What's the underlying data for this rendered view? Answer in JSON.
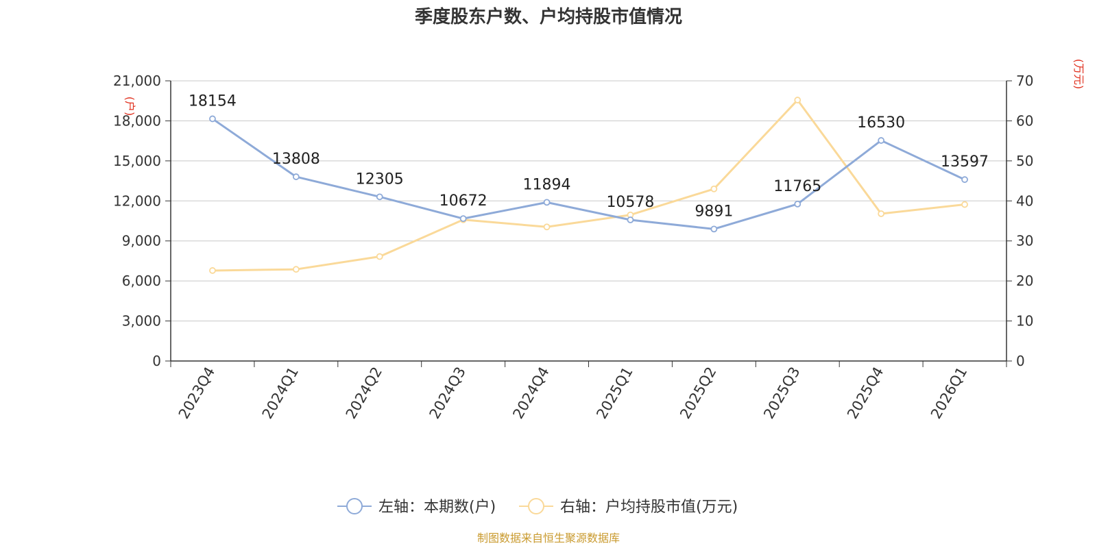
{
  "chart_data": {
    "type": "line",
    "title": "季度股东户数、户均持股市值情况",
    "categories": [
      "2023Q4",
      "2024Q1",
      "2024Q2",
      "2024Q3",
      "2024Q4",
      "2025Q1",
      "2025Q2",
      "2025Q3",
      "2025Q4",
      "2026Q1"
    ],
    "series": [
      {
        "name": "左轴：本期数(户)",
        "axis": "left",
        "color": "#8eaad8",
        "values": [
          18154,
          13808,
          12305,
          10672,
          11894,
          10578,
          9891,
          11765,
          16530,
          13597
        ],
        "labels": [
          "18154",
          "13808",
          "12305",
          "10672",
          "11894",
          "10578",
          "9891",
          "11765",
          "16530",
          "13597"
        ]
      },
      {
        "name": "右轴：户均持股市值(万元)",
        "axis": "right",
        "color": "#fad999",
        "values": [
          22.6,
          22.9,
          26.1,
          35.3,
          33.5,
          36.5,
          43.0,
          65.2,
          36.8,
          39.1
        ]
      }
    ],
    "left_axis": {
      "unit": "(户)",
      "min": 0,
      "max": 21000,
      "ticks": [
        "0",
        "3,000",
        "6,000",
        "9,000",
        "12,000",
        "15,000",
        "18,000",
        "21,000"
      ]
    },
    "right_axis": {
      "unit": "(万元)",
      "min": 0,
      "max": 70,
      "ticks": [
        "0",
        "10",
        "20",
        "30",
        "40",
        "50",
        "60",
        "70"
      ]
    },
    "grid": true,
    "legend_position": "bottom",
    "label_color": "#222222",
    "axis_color": "#333333",
    "unit_color": "#e0301e"
  },
  "source": "制图数据来自恒生聚源数据库"
}
